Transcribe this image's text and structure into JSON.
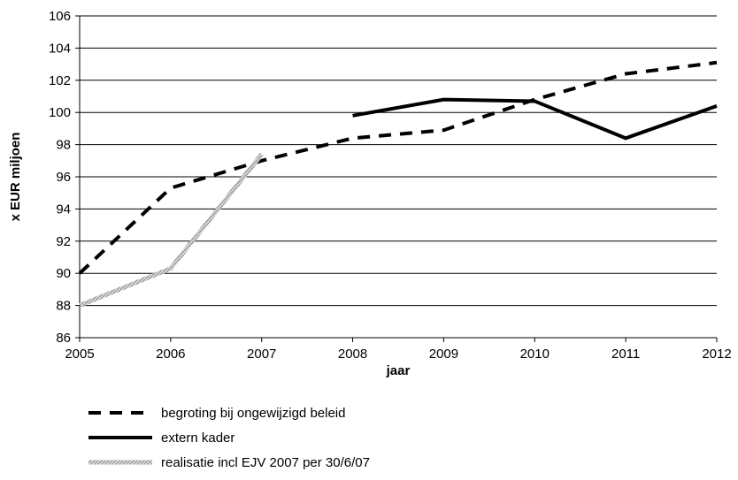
{
  "chart_data": {
    "type": "line",
    "title": "",
    "xlabel": "jaar",
    "ylabel": "x EUR miljoen",
    "x": [
      2005,
      2006,
      2007,
      2008,
      2009,
      2010,
      2011,
      2012
    ],
    "ylim": [
      86,
      106
    ],
    "yticks": [
      86,
      88,
      90,
      92,
      94,
      96,
      98,
      100,
      102,
      104,
      106
    ],
    "grid": "horizontal",
    "legend_position": "bottom",
    "series": [
      {
        "name": "begroting bij ongewijzigd beleid",
        "style": "dashed",
        "color": "#000000",
        "x": [
          2005,
          2006,
          2007,
          2008,
          2009,
          2010,
          2011,
          2012
        ],
        "values": [
          90.0,
          95.3,
          97.0,
          98.4,
          98.9,
          100.8,
          102.4,
          103.1
        ]
      },
      {
        "name": "extern kader",
        "style": "solid",
        "color": "#000000",
        "x": [
          2008,
          2009,
          2010,
          2011,
          2012
        ],
        "values": [
          99.8,
          100.8,
          100.7,
          98.4,
          100.4
        ]
      },
      {
        "name": "realisatie incl EJV 2007 per 30/6/07",
        "style": "hatched",
        "color": "#b0b0b0",
        "x": [
          2005,
          2006,
          2007
        ],
        "values": [
          88.0,
          90.3,
          97.4
        ]
      }
    ]
  }
}
